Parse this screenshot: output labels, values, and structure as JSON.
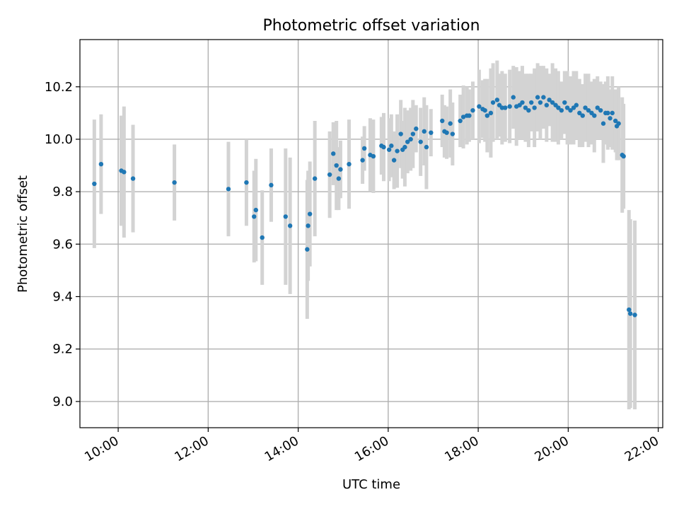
{
  "chart_data": {
    "type": "scatter",
    "title": "Photometric offset variation",
    "xlabel": "UTC time",
    "ylabel": "Photometric offset",
    "xlim": [
      9.15,
      22.1
    ],
    "ylim": [
      8.9,
      10.38
    ],
    "xticks": [
      10,
      12,
      14,
      16,
      18,
      20,
      22
    ],
    "xtick_labels": [
      "10:00",
      "12:00",
      "14:00",
      "16:00",
      "18:00",
      "20:00",
      "22:00"
    ],
    "yticks": [
      9.0,
      9.2,
      9.4,
      9.6,
      9.8,
      10.0,
      10.2
    ],
    "ytick_labels": [
      "9.0",
      "9.2",
      "9.4",
      "9.6",
      "9.8",
      "10.0",
      "10.2"
    ],
    "grid": true,
    "colors": {
      "points": "#1f77b4",
      "errorbars": "#d3d3d3"
    },
    "series": [
      {
        "name": "offset",
        "x": [
          9.47,
          9.62,
          10.07,
          10.13,
          10.33,
          11.25,
          12.45,
          12.85,
          13.02,
          13.06,
          13.2,
          13.4,
          13.72,
          13.82,
          14.2,
          14.22,
          14.26,
          14.37,
          14.7,
          14.78,
          14.85,
          14.9,
          14.94,
          15.13,
          15.43,
          15.47,
          15.6,
          15.67,
          15.85,
          15.9,
          16.02,
          16.07,
          16.13,
          16.2,
          16.28,
          16.32,
          16.37,
          16.43,
          16.5,
          16.55,
          16.62,
          16.72,
          16.8,
          16.85,
          16.95,
          17.2,
          17.25,
          17.3,
          17.38,
          17.43,
          17.6,
          17.67,
          17.75,
          17.8,
          17.88,
          18.02,
          18.1,
          18.15,
          18.2,
          18.28,
          18.33,
          18.42,
          18.47,
          18.53,
          18.6,
          18.7,
          18.78,
          18.85,
          18.92,
          18.98,
          19.05,
          19.12,
          19.18,
          19.25,
          19.32,
          19.38,
          19.45,
          19.52,
          19.58,
          19.65,
          19.72,
          19.78,
          19.85,
          19.92,
          19.98,
          20.05,
          20.12,
          20.18,
          20.25,
          20.32,
          20.38,
          20.45,
          20.52,
          20.58,
          20.65,
          20.72,
          20.78,
          20.83,
          20.88,
          20.93,
          20.98,
          21.05,
          21.08,
          21.12,
          21.2,
          21.23,
          21.35,
          21.38,
          21.48
        ],
        "y": [
          9.83,
          9.905,
          9.88,
          9.875,
          9.85,
          9.835,
          9.81,
          9.835,
          9.705,
          9.73,
          9.625,
          9.825,
          9.705,
          9.67,
          9.58,
          9.67,
          9.715,
          9.85,
          9.865,
          9.945,
          9.9,
          9.85,
          9.885,
          9.905,
          9.92,
          9.965,
          9.94,
          9.935,
          9.975,
          9.97,
          9.96,
          9.975,
          9.92,
          9.955,
          10.02,
          9.96,
          9.97,
          9.99,
          10.0,
          10.02,
          10.04,
          9.99,
          10.03,
          9.97,
          10.025,
          10.07,
          10.03,
          10.025,
          10.06,
          10.02,
          10.07,
          10.085,
          10.09,
          10.09,
          10.11,
          10.125,
          10.115,
          10.11,
          10.09,
          10.1,
          10.14,
          10.15,
          10.13,
          10.12,
          10.12,
          10.125,
          10.16,
          10.125,
          10.13,
          10.14,
          10.12,
          10.11,
          10.14,
          10.12,
          10.16,
          10.14,
          10.16,
          10.13,
          10.15,
          10.14,
          10.13,
          10.12,
          10.11,
          10.14,
          10.12,
          10.11,
          10.12,
          10.13,
          10.1,
          10.09,
          10.12,
          10.11,
          10.1,
          10.09,
          10.12,
          10.11,
          10.06,
          10.1,
          10.1,
          10.08,
          10.1,
          10.07,
          10.05,
          10.06,
          9.94,
          9.935,
          9.35,
          9.335,
          9.33
        ],
        "yerr": [
          0.245,
          0.19,
          0.21,
          0.25,
          0.205,
          0.145,
          0.18,
          0.165,
          0.175,
          0.195,
          0.18,
          0.14,
          0.26,
          0.26,
          0.265,
          0.21,
          0.2,
          0.22,
          0.165,
          0.12,
          0.17,
          0.12,
          0.11,
          0.17,
          0.09,
          0.085,
          0.14,
          0.14,
          0.11,
          0.13,
          0.12,
          0.12,
          0.11,
          0.14,
          0.13,
          0.11,
          0.15,
          0.12,
          0.12,
          0.13,
          0.09,
          0.13,
          0.13,
          0.16,
          0.09,
          0.1,
          0.1,
          0.1,
          0.13,
          0.12,
          0.1,
          0.12,
          0.11,
          0.1,
          0.11,
          0.14,
          0.11,
          0.12,
          0.14,
          0.17,
          0.15,
          0.15,
          0.12,
          0.14,
          0.13,
          0.14,
          0.12,
          0.15,
          0.13,
          0.14,
          0.13,
          0.14,
          0.11,
          0.15,
          0.13,
          0.14,
          0.12,
          0.14,
          0.1,
          0.15,
          0.14,
          0.14,
          0.11,
          0.12,
          0.14,
          0.13,
          0.14,
          0.13,
          0.13,
          0.12,
          0.13,
          0.14,
          0.12,
          0.14,
          0.12,
          0.11,
          0.15,
          0.12,
          0.14,
          0.11,
          0.14,
          0.12,
          0.13,
          0.14,
          0.22,
          0.2,
          0.38,
          0.36,
          0.36
        ]
      }
    ]
  }
}
